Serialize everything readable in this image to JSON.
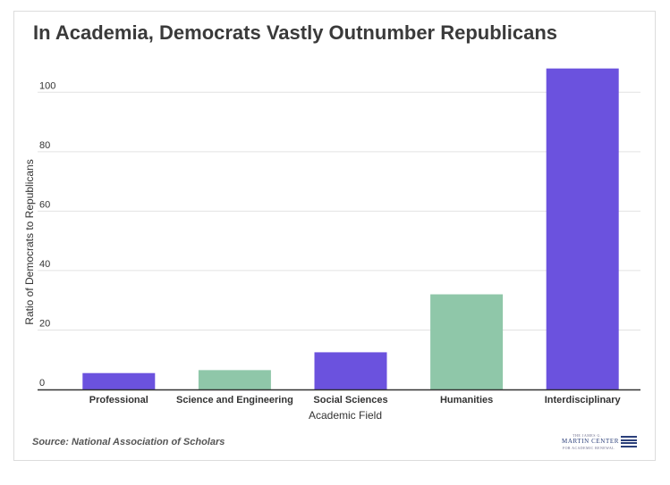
{
  "chart_data": {
    "type": "bar",
    "title": "In Academia, Democrats Vastly Outnumber Republicans",
    "xlabel": "Academic Field",
    "ylabel": "Ratio of Democrats to Republicans",
    "categories": [
      "Professional",
      "Science and Engineering",
      "Social Sciences",
      "Humanities",
      "Interdisciplinary"
    ],
    "values": [
      5.5,
      6.5,
      12.5,
      32,
      108
    ],
    "bar_colors": [
      "#6b52de",
      "#8fc7a9",
      "#6b52de",
      "#8fc7a9",
      "#6b52de"
    ],
    "ylim": [
      0,
      110
    ],
    "yticks": [
      0,
      20,
      40,
      60,
      80,
      100
    ],
    "grid": true
  },
  "source": "Source: National Association of Scholars",
  "logo": {
    "line1": "THE JAMES G.",
    "line2": "MARTIN CENTER",
    "line3": "FOR ACADEMIC RENEWAL"
  }
}
